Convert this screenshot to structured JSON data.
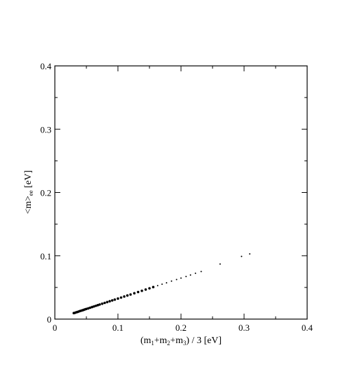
{
  "chart_data": {
    "type": "scatter",
    "xlabel": "(m1+m2+m3) / 3 [eV]",
    "ylabel": "<m>ee [eV]",
    "xlabel_parts": {
      "open": "(m",
      "s1": "1",
      "plus1": "+m",
      "s2": "2",
      "plus2": "+m",
      "s3": "3",
      "close": ") / 3 [eV]"
    },
    "ylabel_parts": {
      "main": "<m>",
      "sub": "ee",
      "unit": " [eV]"
    },
    "xlim": [
      0,
      0.4
    ],
    "ylim": [
      0,
      0.4
    ],
    "x_ticks": [
      "0",
      "0.1",
      "0.2",
      "0.3",
      "0.4"
    ],
    "y_ticks": [
      "0",
      "0.1",
      "0.2",
      "0.3",
      "0.4"
    ],
    "grid": false,
    "legend": "none",
    "marker_color": "#000000",
    "series": [
      {
        "points": [
          [
            0.03,
            0.0095
          ],
          [
            0.032,
            0.01
          ],
          [
            0.034,
            0.0108
          ],
          [
            0.036,
            0.0113
          ],
          [
            0.038,
            0.012
          ],
          [
            0.04,
            0.0128
          ],
          [
            0.042,
            0.0134
          ],
          [
            0.044,
            0.014
          ],
          [
            0.046,
            0.0147
          ],
          [
            0.048,
            0.0154
          ],
          [
            0.05,
            0.0161
          ],
          [
            0.053,
            0.017
          ],
          [
            0.056,
            0.018
          ],
          [
            0.059,
            0.019
          ],
          [
            0.062,
            0.02
          ],
          [
            0.065,
            0.021
          ],
          [
            0.068,
            0.022
          ],
          [
            0.071,
            0.023
          ],
          [
            0.075,
            0.0243
          ],
          [
            0.079,
            0.0256
          ],
          [
            0.083,
            0.0269
          ],
          [
            0.087,
            0.0282
          ],
          [
            0.091,
            0.0295
          ],
          [
            0.095,
            0.0308
          ],
          [
            0.1,
            0.0324
          ],
          [
            0.105,
            0.034
          ],
          [
            0.11,
            0.0357
          ],
          [
            0.115,
            0.0373
          ],
          [
            0.12,
            0.0389
          ],
          [
            0.126,
            0.0408
          ],
          [
            0.132,
            0.0428
          ],
          [
            0.138,
            0.0447
          ],
          [
            0.144,
            0.0467
          ],
          [
            0.15,
            0.0486
          ],
          [
            0.156,
            0.0506
          ],
          [
            0.163,
            0.0528
          ],
          [
            0.17,
            0.0551
          ],
          [
            0.177,
            0.0573
          ],
          [
            0.185,
            0.06
          ],
          [
            0.193,
            0.0625
          ],
          [
            0.2,
            0.0648
          ],
          [
            0.208,
            0.0674
          ],
          [
            0.215,
            0.0697
          ],
          [
            0.223,
            0.0723
          ],
          [
            0.232,
            0.0752
          ],
          [
            0.262,
            0.087
          ],
          [
            0.296,
            0.099
          ],
          [
            0.309,
            0.103
          ]
        ]
      }
    ]
  }
}
